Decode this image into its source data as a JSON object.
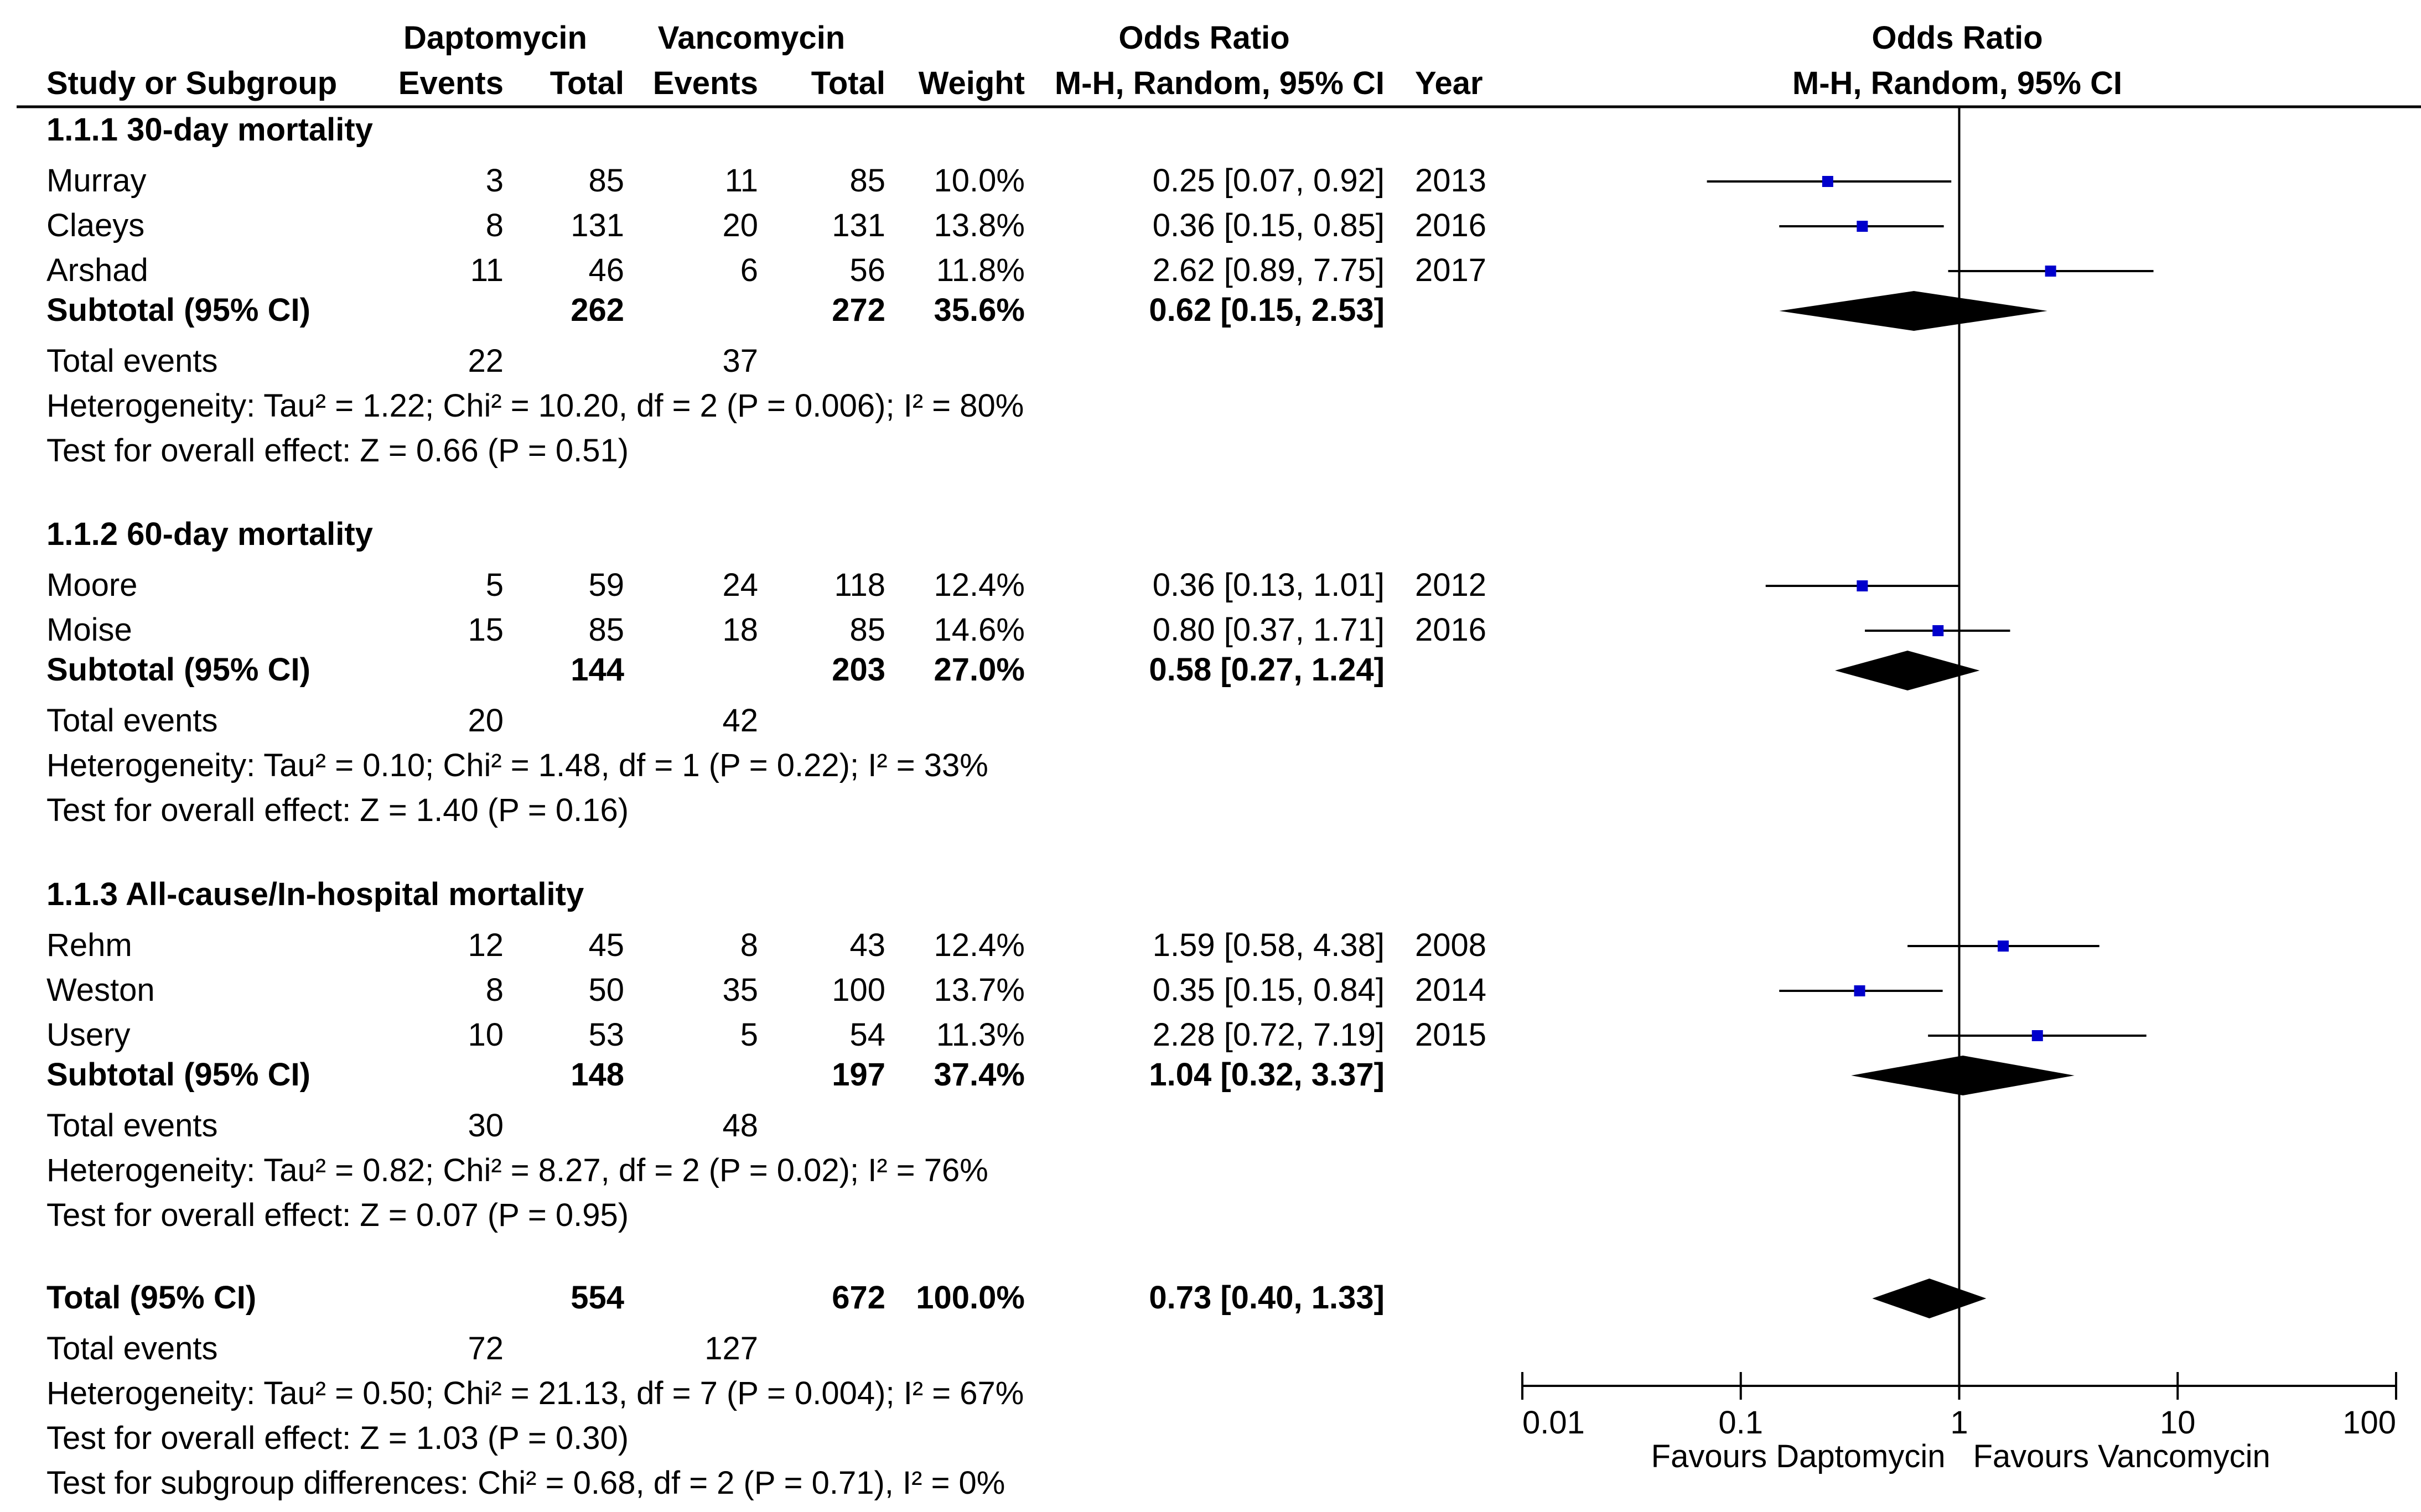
{
  "header": {
    "group1": "Daptomycin",
    "group2": "Vancomycin",
    "or_title": "Odds Ratio",
    "study_col": "Study or Subgroup",
    "events": "Events",
    "total": "Total",
    "weight": "Weight",
    "method": "M-H, Random, 95% CI",
    "year": "Year",
    "plot_title": "Odds Ratio",
    "plot_method": "M-H, Random, 95% CI"
  },
  "subgroups": [
    {
      "title": "1.1.1 30-day mortality",
      "studies": [
        {
          "name": "Murray",
          "e1": "3",
          "t1": "85",
          "e2": "11",
          "t2": "85",
          "weight": "10.0%",
          "ci": "0.25 [0.07, 0.92]",
          "year": "2013"
        },
        {
          "name": "Claeys",
          "e1": "8",
          "t1": "131",
          "e2": "20",
          "t2": "131",
          "weight": "13.8%",
          "ci": "0.36 [0.15, 0.85]",
          "year": "2016"
        },
        {
          "name": "Arshad",
          "e1": "11",
          "t1": "46",
          "e2": "6",
          "t2": "56",
          "weight": "11.8%",
          "ci": "2.62 [0.89, 7.75]",
          "year": "2017"
        }
      ],
      "subtotal": {
        "label": "Subtotal (95% CI)",
        "t1": "262",
        "t2": "272",
        "weight": "35.6%",
        "ci": "0.62 [0.15, 2.53]"
      },
      "events": {
        "label": "Total events",
        "e1": "22",
        "e2": "37"
      },
      "heterogeneity": "Heterogeneity: Tau² = 1.22; Chi² = 10.20, df = 2 (P = 0.006); I² = 80%",
      "overall": "Test for overall effect: Z = 0.66 (P = 0.51)"
    },
    {
      "title": "1.1.2 60-day mortality",
      "studies": [
        {
          "name": "Moore",
          "e1": "5",
          "t1": "59",
          "e2": "24",
          "t2": "118",
          "weight": "12.4%",
          "ci": "0.36 [0.13, 1.01]",
          "year": "2012"
        },
        {
          "name": "Moise",
          "e1": "15",
          "t1": "85",
          "e2": "18",
          "t2": "85",
          "weight": "14.6%",
          "ci": "0.80 [0.37, 1.71]",
          "year": "2016"
        }
      ],
      "subtotal": {
        "label": "Subtotal (95% CI)",
        "t1": "144",
        "t2": "203",
        "weight": "27.0%",
        "ci": "0.58 [0.27, 1.24]"
      },
      "events": {
        "label": "Total events",
        "e1": "20",
        "e2": "42"
      },
      "heterogeneity": "Heterogeneity: Tau² = 0.10; Chi² = 1.48, df = 1 (P = 0.22); I² = 33%",
      "overall": "Test for overall effect: Z = 1.40 (P = 0.16)"
    },
    {
      "title": "1.1.3 All-cause/In-hospital mortality",
      "studies": [
        {
          "name": "Rehm",
          "e1": "12",
          "t1": "45",
          "e2": "8",
          "t2": "43",
          "weight": "12.4%",
          "ci": "1.59 [0.58, 4.38]",
          "year": "2008"
        },
        {
          "name": "Weston",
          "e1": "8",
          "t1": "50",
          "e2": "35",
          "t2": "100",
          "weight": "13.7%",
          "ci": "0.35 [0.15, 0.84]",
          "year": "2014"
        },
        {
          "name": "Usery",
          "e1": "10",
          "t1": "53",
          "e2": "5",
          "t2": "54",
          "weight": "11.3%",
          "ci": "2.28 [0.72, 7.19]",
          "year": "2015"
        }
      ],
      "subtotal": {
        "label": "Subtotal (95% CI)",
        "t1": "148",
        "t2": "197",
        "weight": "37.4%",
        "ci": "1.04 [0.32, 3.37]"
      },
      "events": {
        "label": "Total events",
        "e1": "30",
        "e2": "48"
      },
      "heterogeneity": "Heterogeneity: Tau² = 0.82; Chi² = 8.27, df = 2 (P = 0.02); I² = 76%",
      "overall": "Test for overall effect: Z = 0.07 (P = 0.95)"
    }
  ],
  "total": {
    "label": "Total (95% CI)",
    "t1": "554",
    "t2": "672",
    "weight": "100.0%",
    "ci": "0.73 [0.40, 1.33]",
    "events": {
      "label": "Total events",
      "e1": "72",
      "e2": "127"
    },
    "heterogeneity": "Heterogeneity: Tau² = 0.50; Chi² = 21.13, df = 7 (P = 0.004); I² = 67%",
    "overall": "Test for overall effect: Z = 1.03 (P = 0.30)",
    "subgroup_diff": "Test for subgroup differences: Chi² = 0.68, df = 2 (P = 0.71), I² = 0%"
  },
  "colors": {
    "marker": "#0000cc",
    "diamond": "#000000",
    "line": "#000000"
  },
  "chart_data": {
    "type": "forest",
    "title": "Odds Ratio",
    "xlabel": "M-H, Random, 95% CI",
    "xscale": "log",
    "xlim": [
      0.01,
      100
    ],
    "xticks": [
      "0.01",
      "0.1",
      "1",
      "10",
      "100"
    ],
    "xtick_values": [
      0.01,
      0.1,
      1,
      10,
      100
    ],
    "favours_left": "Favours Daptomycin",
    "favours_right": "Favours Vancomycin",
    "studies": [
      {
        "name": "Murray",
        "or": 0.25,
        "lo": 0.07,
        "hi": 0.92,
        "weight": 10.0
      },
      {
        "name": "Claeys",
        "or": 0.36,
        "lo": 0.15,
        "hi": 0.85,
        "weight": 13.8
      },
      {
        "name": "Arshad",
        "or": 2.62,
        "lo": 0.89,
        "hi": 7.75,
        "weight": 11.8
      },
      {
        "name": "Moore",
        "or": 0.36,
        "lo": 0.13,
        "hi": 1.01,
        "weight": 12.4
      },
      {
        "name": "Moise",
        "or": 0.8,
        "lo": 0.37,
        "hi": 1.71,
        "weight": 14.6
      },
      {
        "name": "Rehm",
        "or": 1.59,
        "lo": 0.58,
        "hi": 4.38,
        "weight": 12.4
      },
      {
        "name": "Weston",
        "or": 0.35,
        "lo": 0.15,
        "hi": 0.84,
        "weight": 13.7
      },
      {
        "name": "Usery",
        "or": 2.28,
        "lo": 0.72,
        "hi": 7.19,
        "weight": 11.3
      }
    ],
    "pooled": [
      {
        "name": "Subtotal 1.1.1",
        "or": 0.62,
        "lo": 0.15,
        "hi": 2.53
      },
      {
        "name": "Subtotal 1.1.2",
        "or": 0.58,
        "lo": 0.27,
        "hi": 1.24
      },
      {
        "name": "Subtotal 1.1.3",
        "or": 1.04,
        "lo": 0.32,
        "hi": 3.37
      },
      {
        "name": "Total",
        "or": 0.73,
        "lo": 0.4,
        "hi": 1.33
      }
    ]
  }
}
